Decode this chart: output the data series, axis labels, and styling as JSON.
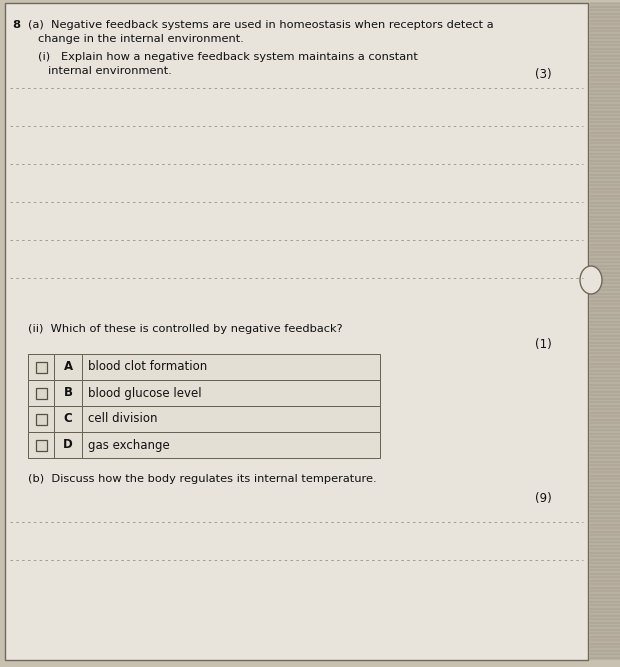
{
  "bg_color": "#c8c0b0",
  "paper_color": "#e8e4dc",
  "paper_color2": "#ddd8cc",
  "right_strip_color": "#b8b0a0",
  "line_color": "#999080",
  "border_color": "#706858",
  "text_color": "#111111",
  "mark_color": "#222222",
  "table_bg": "#e4dfd4",
  "table_border": "#666050",
  "question_number": "8",
  "part_a_line1": "(a)  Negative feedback systems are used in homeostasis when receptors detect a",
  "part_a_line2": "      change in the internal environment.",
  "part_a_i_line1": "(i)   Explain how a negative feedback system maintains a constant",
  "part_a_i_line2": "       internal environment.",
  "mark_3": "(3)",
  "n_answer_lines_1": 6,
  "part_a_ii_text": "(ii)  Which of these is controlled by negative feedback?",
  "mark_1": "(1)",
  "options": [
    {
      "letter": "A",
      "text": "blood clot formation"
    },
    {
      "letter": "B",
      "text": "blood glucose level"
    },
    {
      "letter": "C",
      "text": "cell division"
    },
    {
      "letter": "D",
      "text": "gas exchange"
    }
  ],
  "part_b_line1": "(b)  Discuss how the body regulates its internal temperature.",
  "mark_9": "(9)",
  "n_answer_lines_2": 2
}
